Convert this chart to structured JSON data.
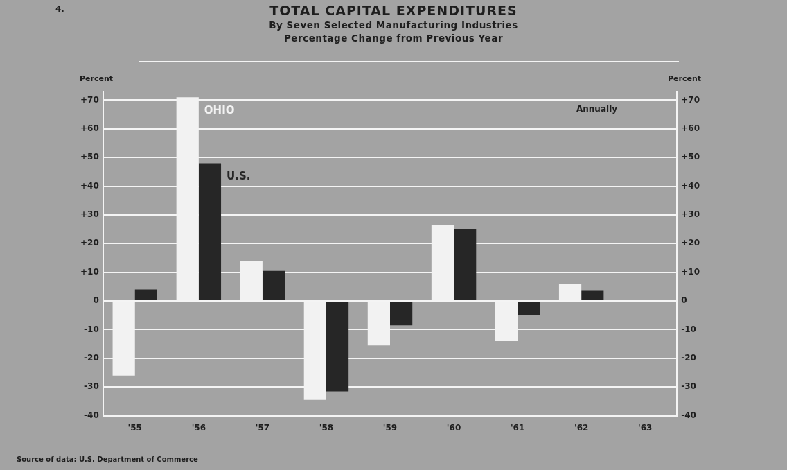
{
  "chart_data": {
    "type": "bar",
    "title": "TOTAL CAPITAL EXPENDITURES",
    "subtitle": "By Seven Selected Manufacturing Industries\nPercentage Change from Previous Year",
    "ylabel": "Percent",
    "y2label": "Percent",
    "annotations": [
      "4.",
      "Annually",
      "Source of data: U.S. Department of Commerce"
    ],
    "categories": [
      "'55",
      "'56",
      "'57",
      "'58",
      "'59",
      "'60",
      "'61",
      "'62",
      "'63"
    ],
    "series": [
      {
        "name": "OHIO",
        "color": "#f2f2f2",
        "values": [
          -26,
          71,
          14,
          -34.5,
          -15.5,
          26.5,
          -14,
          6,
          null
        ]
      },
      {
        "name": "U.S.",
        "color": "#262626",
        "values": [
          4,
          48,
          10.5,
          -31.5,
          -8.5,
          25,
          -5,
          3.5,
          null
        ]
      }
    ],
    "ylim": [
      -40,
      73
    ],
    "yticks": [
      {
        "value": -40,
        "label": "-40"
      },
      {
        "value": -30,
        "label": "-30"
      },
      {
        "value": -20,
        "label": "-20"
      },
      {
        "value": -10,
        "label": "-10"
      },
      0,
      {
        "value": 10,
        "label": "+10"
      },
      {
        "value": 20,
        "label": "+20"
      },
      {
        "value": 30,
        "label": "+30"
      },
      {
        "value": 40,
        "label": "+40"
      },
      {
        "value": 50,
        "label": "+50"
      },
      {
        "value": 60,
        "label": "+60"
      },
      {
        "value": 70,
        "label": "+70"
      }
    ],
    "y2lim": [
      -40,
      73
    ],
    "y2ticks": [
      {
        "value": -40,
        "label": "-40"
      },
      {
        "value": -30,
        "label": "-30"
      },
      {
        "value": -20,
        "label": "-20"
      },
      {
        "value": -10,
        "label": "-10"
      },
      0,
      {
        "value": 10,
        "label": "+10"
      },
      {
        "value": 20,
        "label": "+20"
      },
      {
        "value": 30,
        "label": "+30"
      },
      {
        "value": 40,
        "label": "+40"
      },
      {
        "value": 50,
        "label": "+50"
      },
      {
        "value": 60,
        "label": "+60"
      },
      {
        "value": 70,
        "label": "+70"
      }
    ],
    "grid": "y",
    "legend": false
  }
}
